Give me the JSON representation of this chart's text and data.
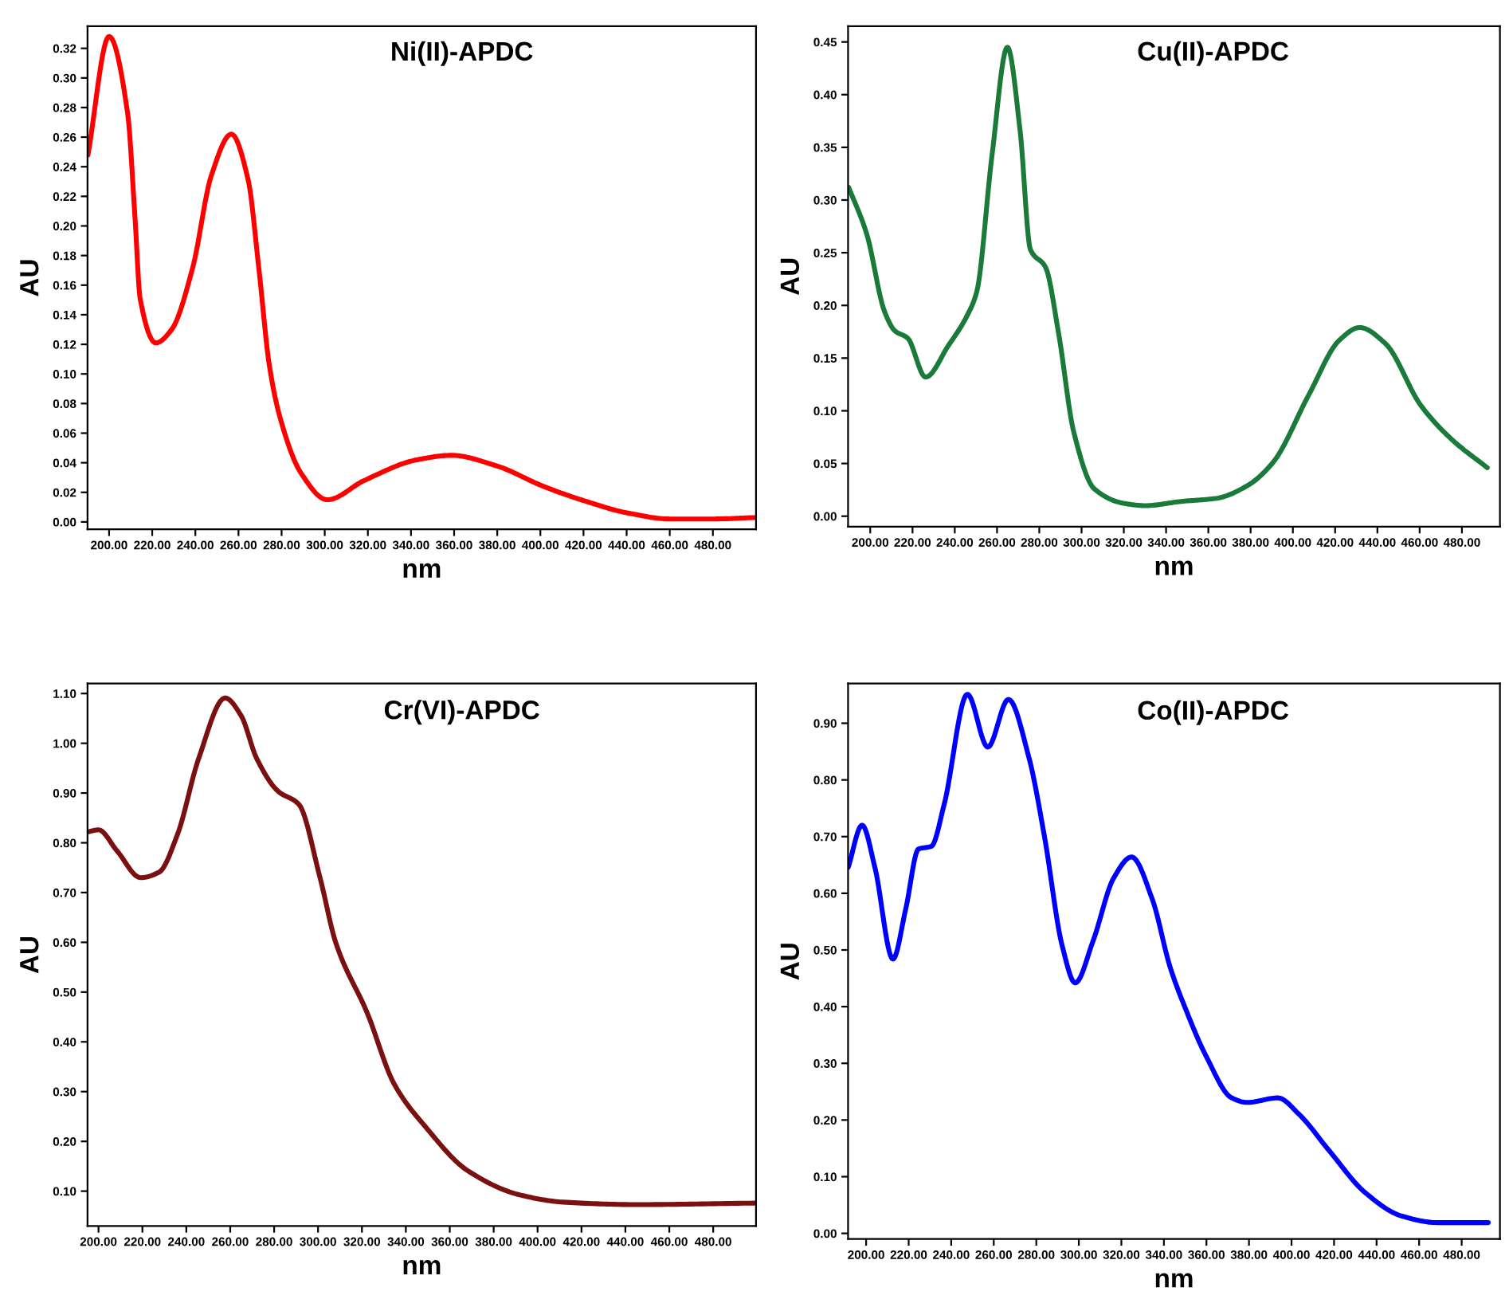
{
  "chart_data": [
    {
      "type": "line",
      "title": "Ni(II)-APDC",
      "xlabel": "nm",
      "ylabel": "AU",
      "xlim": [
        190,
        500
      ],
      "ylim": [
        -0.005,
        0.335
      ],
      "xticks": [
        {
          "value": 200,
          "label": "200.00"
        },
        {
          "value": 220,
          "label": "220.00"
        },
        {
          "value": 240,
          "label": "240.00"
        },
        {
          "value": 260,
          "label": "260.00"
        },
        {
          "value": 280,
          "label": "280.00"
        },
        {
          "value": 300,
          "label": "300.00"
        },
        {
          "value": 320,
          "label": "320.00"
        },
        {
          "value": 340,
          "label": "340.00"
        },
        {
          "value": 360,
          "label": "360.00"
        },
        {
          "value": 380,
          "label": "380.00"
        },
        {
          "value": 400,
          "label": "400.00"
        },
        {
          "value": 420,
          "label": "420.00"
        },
        {
          "value": 440,
          "label": "440.00"
        },
        {
          "value": 460,
          "label": "460.00"
        },
        {
          "value": 480,
          "label": "480.00"
        }
      ],
      "yticks": [
        {
          "value": 0,
          "label": "0.00"
        },
        {
          "value": 0.02,
          "label": "0.02"
        },
        {
          "value": 0.04,
          "label": "0.04"
        },
        {
          "value": 0.06,
          "label": "0.06"
        },
        {
          "value": 0.08,
          "label": "0.08"
        },
        {
          "value": 0.1,
          "label": "0.10"
        },
        {
          "value": 0.12,
          "label": "0.12"
        },
        {
          "value": 0.14,
          "label": "0.14"
        },
        {
          "value": 0.16,
          "label": "0.16"
        },
        {
          "value": 0.18,
          "label": "0.18"
        },
        {
          "value": 0.2,
          "label": "0.20"
        },
        {
          "value": 0.22,
          "label": "0.22"
        },
        {
          "value": 0.24,
          "label": "0.24"
        },
        {
          "value": 0.26,
          "label": "0.26"
        },
        {
          "value": 0.28,
          "label": "0.28"
        },
        {
          "value": 0.3,
          "label": "0.30"
        },
        {
          "value": 0.32,
          "label": "0.32"
        }
      ],
      "grid": false,
      "legend": false,
      "series": [
        {
          "color": "#ff0000",
          "x": [
            190.2,
            200,
            208.6,
            212,
            214.4,
            221.7,
            229,
            238.8,
            247.4,
            256.7,
            264.5,
            269.4,
            274.3,
            279.2,
            289,
            301.2,
            318.3,
            342.8,
            358.7,
            379.5,
            401.5,
            421,
            440.6,
            460.2,
            479.8,
            500
          ],
          "values": [
            0.248,
            0.328,
            0.276,
            0.206,
            0.151,
            0.121,
            0.13,
            0.172,
            0.234,
            0.262,
            0.231,
            0.172,
            0.106,
            0.071,
            0.033,
            0.015,
            0.028,
            0.042,
            0.045,
            0.038,
            0.024,
            0.014,
            0.006,
            0.002,
            0.002,
            0.003
          ]
        }
      ]
    },
    {
      "type": "line",
      "title": "Cu(II)-APDC",
      "xlabel": "nm",
      "ylabel": "AU",
      "xlim": [
        189.5,
        498
      ],
      "ylim": [
        -0.01,
        0.465
      ],
      "xticks": [
        {
          "value": 200,
          "label": "200.00"
        },
        {
          "value": 220,
          "label": "220.00"
        },
        {
          "value": 240,
          "label": "240.00"
        },
        {
          "value": 260,
          "label": "260.00"
        },
        {
          "value": 280,
          "label": "280.00"
        },
        {
          "value": 300,
          "label": "300.00"
        },
        {
          "value": 320,
          "label": "320.00"
        },
        {
          "value": 340,
          "label": "340.00"
        },
        {
          "value": 360,
          "label": "360.00"
        },
        {
          "value": 380,
          "label": "380.00"
        },
        {
          "value": 400,
          "label": "400.00"
        },
        {
          "value": 420,
          "label": "420.00"
        },
        {
          "value": 440,
          "label": "440.00"
        },
        {
          "value": 460,
          "label": "460.00"
        },
        {
          "value": 480,
          "label": "480.00"
        }
      ],
      "yticks": [
        {
          "value": 0,
          "label": "0.00"
        },
        {
          "value": 0.05,
          "label": "0.05"
        },
        {
          "value": 0.1,
          "label": "0.10"
        },
        {
          "value": 0.15,
          "label": "0.15"
        },
        {
          "value": 0.2,
          "label": "0.20"
        },
        {
          "value": 0.25,
          "label": "0.25"
        },
        {
          "value": 0.3,
          "label": "0.30"
        },
        {
          "value": 0.35,
          "label": "0.35"
        },
        {
          "value": 0.4,
          "label": "0.40"
        },
        {
          "value": 0.45,
          "label": "0.45"
        }
      ],
      "grid": false,
      "legend": false,
      "series": [
        {
          "color": "#1a7a3a",
          "x": [
            189.8,
            198.3,
            206.8,
            211.6,
            217.7,
            226.2,
            237,
            245.5,
            250.4,
            257.6,
            264.9,
            270.9,
            275.8,
            283,
            289.1,
            296.3,
            306,
            320.5,
            330.2,
            347.1,
            364,
            378.5,
            390.6,
            407.5,
            422,
            431.6,
            443.7,
            460.6,
            475.1,
            492
          ],
          "values": [
            0.312,
            0.268,
            0.194,
            0.176,
            0.169,
            0.132,
            0.162,
            0.189,
            0.213,
            0.342,
            0.445,
            0.366,
            0.253,
            0.236,
            0.174,
            0.08,
            0.026,
            0.012,
            0.01,
            0.014,
            0.017,
            0.029,
            0.051,
            0.115,
            0.167,
            0.179,
            0.164,
            0.105,
            0.073,
            0.046
          ]
        }
      ]
    },
    {
      "type": "line",
      "title": "Cr(VI)-APDC",
      "xlabel": "nm",
      "ylabel": "AU",
      "xlim": [
        195,
        499.5
      ],
      "ylim": [
        0.03,
        1.12
      ],
      "xticks": [
        {
          "value": 200,
          "label": "200.00"
        },
        {
          "value": 220,
          "label": "220.00"
        },
        {
          "value": 240,
          "label": "240.00"
        },
        {
          "value": 260,
          "label": "260.00"
        },
        {
          "value": 280,
          "label": "280.00"
        },
        {
          "value": 300,
          "label": "300.00"
        },
        {
          "value": 320,
          "label": "320.00"
        },
        {
          "value": 340,
          "label": "340.00"
        },
        {
          "value": 360,
          "label": "360.00"
        },
        {
          "value": 380,
          "label": "380.00"
        },
        {
          "value": 400,
          "label": "400.00"
        },
        {
          "value": 420,
          "label": "420.00"
        },
        {
          "value": 440,
          "label": "440.00"
        },
        {
          "value": 460,
          "label": "460.00"
        },
        {
          "value": 480,
          "label": "480.00"
        }
      ],
      "yticks": [
        {
          "value": 0.1,
          "label": "0.10"
        },
        {
          "value": 0.2,
          "label": "0.20"
        },
        {
          "value": 0.3,
          "label": "0.30"
        },
        {
          "value": 0.4,
          "label": "0.40"
        },
        {
          "value": 0.5,
          "label": "0.50"
        },
        {
          "value": 0.6,
          "label": "0.60"
        },
        {
          "value": 0.7,
          "label": "0.70"
        },
        {
          "value": 0.8,
          "label": "0.80"
        },
        {
          "value": 0.9,
          "label": "0.90"
        },
        {
          "value": 1.0,
          "label": "1.00"
        },
        {
          "value": 1.1,
          "label": "1.10"
        }
      ],
      "grid": false,
      "legend": false,
      "series": [
        {
          "color": "#7b1010",
          "x": [
            195.2,
            200,
            208.4,
            219.2,
            227.6,
            236,
            245.6,
            257.7,
            264.9,
            272.1,
            281.7,
            291.3,
            300.9,
            308.1,
            322.5,
            334.6,
            349,
            368.2,
            392.3,
            411.5,
            445.2,
            499.2
          ],
          "values": [
            0.822,
            0.826,
            0.784,
            0.73,
            0.741,
            0.817,
            0.969,
            1.091,
            1.056,
            0.969,
            0.904,
            0.877,
            0.73,
            0.599,
            0.457,
            0.316,
            0.229,
            0.141,
            0.092,
            0.078,
            0.073,
            0.076
          ]
        }
      ]
    },
    {
      "type": "line",
      "title": "Co(II)-APDC",
      "xlabel": "nm",
      "ylabel": "AU",
      "xlim": [
        191.5,
        498
      ],
      "ylim": [
        -0.01,
        0.97
      ],
      "xticks": [
        {
          "value": 200,
          "label": "200.00"
        },
        {
          "value": 220,
          "label": "220.00"
        },
        {
          "value": 240,
          "label": "240.00"
        },
        {
          "value": 260,
          "label": "260.00"
        },
        {
          "value": 280,
          "label": "280.00"
        },
        {
          "value": 300,
          "label": "300.00"
        },
        {
          "value": 320,
          "label": "320.00"
        },
        {
          "value": 340,
          "label": "340.00"
        },
        {
          "value": 360,
          "label": "360.00"
        },
        {
          "value": 380,
          "label": "380.00"
        },
        {
          "value": 400,
          "label": "400.00"
        },
        {
          "value": 420,
          "label": "420.00"
        },
        {
          "value": 440,
          "label": "440.00"
        },
        {
          "value": 460,
          "label": "460.00"
        },
        {
          "value": 480,
          "label": "480.00"
        }
      ],
      "yticks": [
        {
          "value": 0,
          "label": "0.00"
        },
        {
          "value": 0.1,
          "label": "0.10"
        },
        {
          "value": 0.2,
          "label": "0.20"
        },
        {
          "value": 0.3,
          "label": "0.30"
        },
        {
          "value": 0.4,
          "label": "0.40"
        },
        {
          "value": 0.5,
          "label": "0.50"
        },
        {
          "value": 0.6,
          "label": "0.60"
        },
        {
          "value": 0.7,
          "label": "0.70"
        },
        {
          "value": 0.8,
          "label": "0.80"
        },
        {
          "value": 0.9,
          "label": "0.90"
        }
      ],
      "grid": false,
      "legend": false,
      "series": [
        {
          "color": "#0000ff",
          "x": [
            191.6,
            198.1,
            204.1,
            212.6,
            218.6,
            224.6,
            230.7,
            236.7,
            247.6,
            257.2,
            266.9,
            276.5,
            283.8,
            292.2,
            298.3,
            306.7,
            316.4,
            324.8,
            334.5,
            342.9,
            350.2,
            359.8,
            371.9,
            379.1,
            393.6,
            403.3,
            417.7,
            434.6,
            451.5,
            468.4,
            492.5
          ],
          "values": [
            0.646,
            0.72,
            0.646,
            0.484,
            0.572,
            0.678,
            0.683,
            0.757,
            0.951,
            0.858,
            0.942,
            0.84,
            0.701,
            0.507,
            0.442,
            0.516,
            0.627,
            0.664,
            0.59,
            0.47,
            0.396,
            0.313,
            0.239,
            0.231,
            0.239,
            0.211,
            0.146,
            0.072,
            0.031,
            0.019,
            0.019
          ]
        }
      ]
    }
  ]
}
